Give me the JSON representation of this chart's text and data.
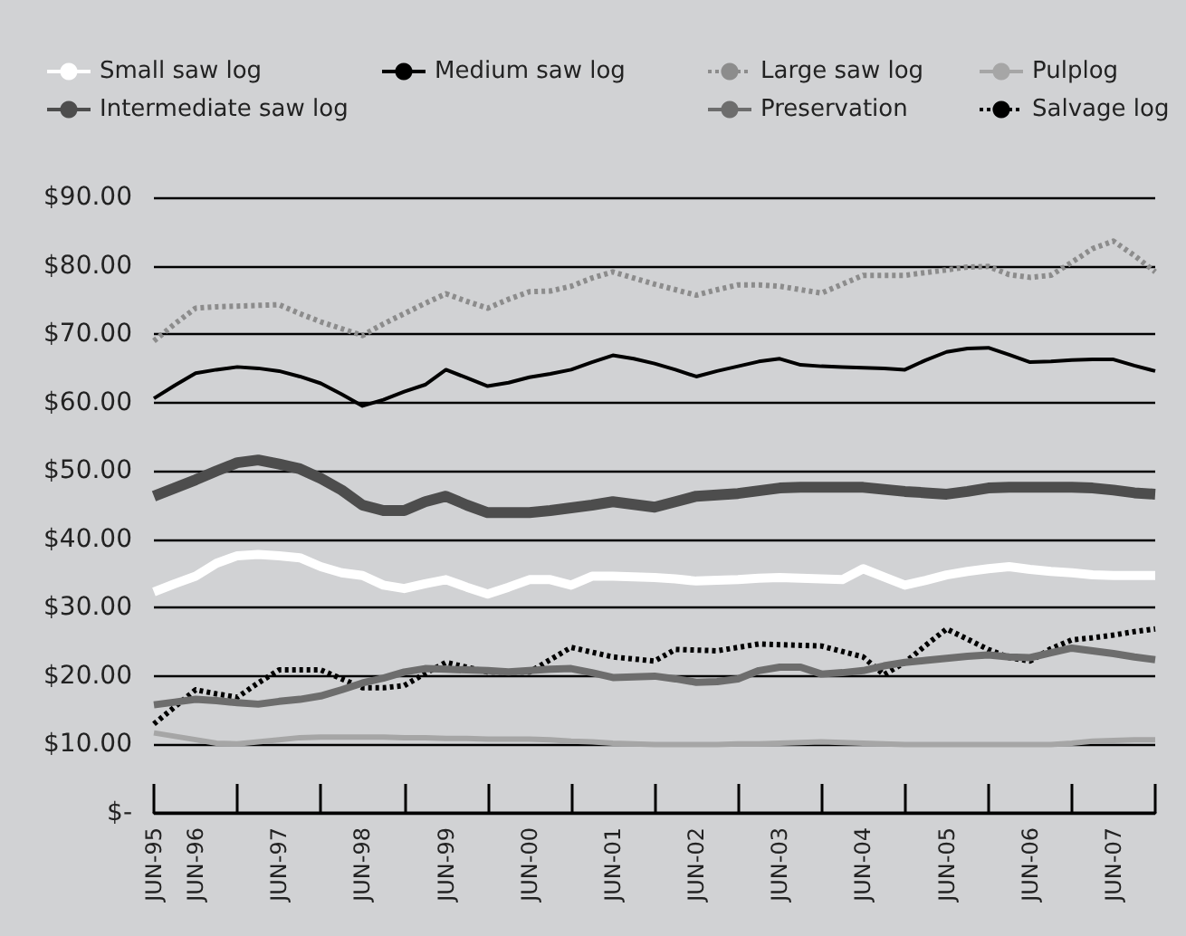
{
  "chart_data": {
    "type": "line",
    "categories": [
      "JUN-95",
      null,
      "JUN-96",
      null,
      null,
      null,
      "JUN-97",
      null,
      null,
      null,
      "JUN-98",
      null,
      null,
      null,
      "JUN-99",
      null,
      null,
      null,
      "JUN-00",
      null,
      null,
      null,
      "JUN-01",
      null,
      null,
      null,
      "JUN-02",
      null,
      null,
      null,
      "JUN-03",
      null,
      null,
      null,
      "JUN-04",
      null,
      null,
      null,
      "JUN-05",
      null,
      null,
      null,
      "JUN-06",
      null,
      null,
      null,
      "JUN-07",
      null,
      null
    ],
    "series": [
      {
        "name": "Small saw log",
        "color": "#ffffff",
        "line_style": "solid",
        "values": [
          32.3,
          33.5,
          34.6,
          36.5,
          37.6,
          37.8,
          37.6,
          37.3,
          36.0,
          35.1,
          34.7,
          33.3,
          32.8,
          33.5,
          34.1,
          33.0,
          32.0,
          33.0,
          34.1,
          34.1,
          33.3,
          34.6,
          34.6,
          34.5,
          34.4,
          34.2,
          33.9,
          34.0,
          34.1,
          34.3,
          34.4,
          34.3,
          34.2,
          34.1,
          35.7,
          34.5,
          33.3,
          34.0,
          34.8,
          35.3,
          35.7,
          36.0,
          35.6,
          35.3,
          35.1,
          34.8,
          34.7,
          34.7,
          34.7
        ]
      },
      {
        "name": "Intermediate saw log",
        "color": "#4d4d4d",
        "line_style": "solid",
        "values": [
          46.3,
          47.5,
          48.7,
          50.0,
          51.2,
          51.6,
          51.0,
          50.3,
          48.9,
          47.2,
          45.0,
          44.2,
          44.2,
          45.5,
          46.3,
          45.0,
          43.9,
          43.9,
          43.9,
          44.2,
          44.6,
          45.0,
          45.5,
          45.1,
          44.7,
          45.5,
          46.3,
          46.5,
          46.7,
          47.1,
          47.5,
          47.6,
          47.6,
          47.6,
          47.6,
          47.3,
          47.0,
          46.8,
          46.6,
          47.0,
          47.5,
          47.6,
          47.6,
          47.6,
          47.6,
          47.5,
          47.2,
          46.8,
          46.6
        ]
      },
      {
        "name": "Medium saw log",
        "color": "#000000",
        "line_style": "solid",
        "values": [
          60.6,
          62.5,
          64.3,
          64.8,
          65.2,
          65.0,
          64.6,
          63.8,
          62.8,
          61.2,
          59.5,
          60.4,
          61.6,
          62.6,
          64.8,
          63.6,
          62.4,
          62.9,
          63.7,
          64.2,
          64.8,
          65.9,
          66.9,
          66.4,
          65.7,
          64.8,
          63.8,
          64.6,
          65.3,
          66.0,
          66.4,
          65.5,
          65.3,
          65.2,
          65.1,
          65.0,
          64.8,
          66.2,
          67.4,
          67.9,
          68.0,
          67.0,
          65.9,
          66.0,
          66.2,
          66.3,
          66.3,
          65.4,
          64.6
        ]
      },
      {
        "name": "Large saw log",
        "color": "#8c8c8c",
        "line_style": "dotted",
        "values": [
          69.0,
          71.5,
          73.8,
          74.0,
          74.1,
          74.2,
          74.3,
          73.0,
          71.8,
          70.8,
          69.8,
          71.5,
          73.0,
          74.5,
          75.9,
          74.8,
          73.8,
          75.1,
          76.2,
          76.3,
          77.0,
          78.2,
          79.1,
          78.2,
          77.3,
          76.5,
          75.7,
          76.5,
          77.2,
          77.2,
          77.0,
          76.5,
          76.0,
          77.3,
          78.6,
          78.6,
          78.6,
          79.0,
          79.4,
          79.8,
          79.9,
          78.7,
          78.3,
          78.6,
          80.5,
          82.5,
          83.6,
          81.5,
          79.1
        ]
      },
      {
        "name": "Preservation",
        "color": "#6d6d6d",
        "line_style": "solid",
        "values": [
          15.8,
          16.2,
          16.6,
          16.4,
          16.1,
          15.9,
          16.3,
          16.6,
          17.1,
          18.0,
          19.0,
          19.7,
          20.6,
          21.1,
          21.0,
          20.9,
          20.8,
          20.6,
          20.8,
          21.0,
          21.1,
          20.5,
          19.8,
          19.9,
          20.0,
          19.6,
          19.1,
          19.2,
          19.6,
          20.8,
          21.3,
          21.3,
          20.3,
          20.5,
          20.8,
          21.5,
          22.0,
          22.3,
          22.6,
          22.9,
          23.1,
          22.8,
          22.7,
          23.4,
          24.1,
          23.7,
          23.3,
          22.8,
          22.4
        ]
      },
      {
        "name": "Pulplog",
        "color": "#a6a6a6",
        "line_style": "solid",
        "values": [
          11.7,
          11.2,
          10.7,
          10.2,
          10.1,
          10.4,
          10.7,
          11.0,
          11.1,
          11.1,
          11.1,
          11.1,
          11.0,
          11.0,
          10.9,
          10.9,
          10.8,
          10.8,
          10.8,
          10.7,
          10.5,
          10.4,
          10.2,
          10.1,
          10.0,
          10.0,
          10.0,
          10.0,
          10.1,
          10.1,
          10.2,
          10.3,
          10.4,
          10.3,
          10.2,
          10.1,
          10.0,
          10.0,
          10.0,
          10.0,
          10.0,
          10.0,
          10.0,
          10.0,
          10.2,
          10.5,
          10.6,
          10.7,
          10.7
        ]
      },
      {
        "name": "Salvage log",
        "color": "#000000",
        "line_style": "dotted",
        "values": [
          13.0,
          15.5,
          18.0,
          17.4,
          16.9,
          19.0,
          20.9,
          20.9,
          20.9,
          19.6,
          18.3,
          18.3,
          18.6,
          20.4,
          22.0,
          21.3,
          20.6,
          20.6,
          20.6,
          22.4,
          24.2,
          23.5,
          22.8,
          22.5,
          22.2,
          23.9,
          23.8,
          23.7,
          24.2,
          24.7,
          24.6,
          24.5,
          24.4,
          23.6,
          22.8,
          20.2,
          22.0,
          24.5,
          26.9,
          25.4,
          23.9,
          22.7,
          22.2,
          24.0,
          25.3,
          25.6,
          26.0,
          26.5,
          26.9
        ]
      }
    ],
    "ylim": [
      0,
      90
    ],
    "yticks": [
      {
        "value": 0,
        "label": "$-"
      },
      {
        "value": 10,
        "label": "$10.00"
      },
      {
        "value": 20,
        "label": "$20.00"
      },
      {
        "value": 30,
        "label": "$30.00"
      },
      {
        "value": 40,
        "label": "$40.00"
      },
      {
        "value": 50,
        "label": "$50.00"
      },
      {
        "value": 60,
        "label": "$60.00"
      },
      {
        "value": 70,
        "label": "$70.00"
      },
      {
        "value": 80,
        "label": "$80.00"
      },
      {
        "value": 90,
        "label": "$90.00"
      }
    ],
    "grid": "y",
    "legend": "top",
    "marker": "none"
  }
}
